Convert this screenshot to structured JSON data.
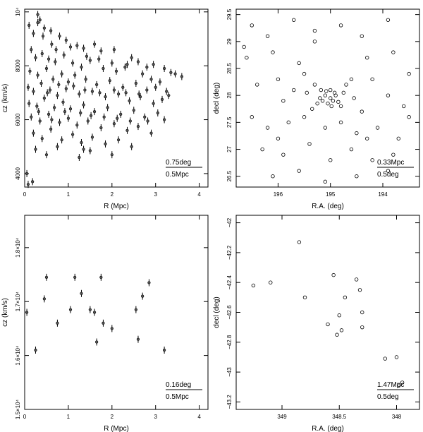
{
  "chart_data": [
    {
      "type": "scatter",
      "panel": "top-left",
      "xlabel": "R (Mpc)",
      "ylabel": "cz (km/s)",
      "xlim": [
        0,
        4.2
      ],
      "ylim": [
        3500,
        10100
      ],
      "x_ticks": [
        0,
        1,
        2,
        3,
        4
      ],
      "y_ticks": [
        {
          "v": 4000,
          "label": "4000"
        },
        {
          "v": 6000,
          "label": "6000"
        },
        {
          "v": 8000,
          "label": "8000"
        },
        {
          "v": 10000,
          "label": "10⁴"
        }
      ],
      "scale_bar": {
        "top": "0.75deg",
        "bottom": "0.5Mpc"
      },
      "marker": "errorbar",
      "points": [
        [
          0.05,
          4000
        ],
        [
          0.08,
          3600
        ],
        [
          0.18,
          3700
        ],
        [
          0.1,
          9500
        ],
        [
          0.2,
          9200
        ],
        [
          0.3,
          9900
        ],
        [
          0.35,
          9700
        ],
        [
          0.45,
          9400
        ],
        [
          0.6,
          9300
        ],
        [
          0.8,
          9100
        ],
        [
          0.95,
          8950
        ],
        [
          1.2,
          8750
        ],
        [
          1.35,
          8650
        ],
        [
          1.6,
          8800
        ],
        [
          1.75,
          8550
        ],
        [
          2.05,
          8600
        ],
        [
          2.45,
          8300
        ],
        [
          2.6,
          8150
        ],
        [
          2.95,
          8050
        ],
        [
          3.2,
          7900
        ],
        [
          3.45,
          7700
        ],
        [
          3.6,
          7600
        ],
        [
          0.15,
          8600
        ],
        [
          0.25,
          8300
        ],
        [
          0.4,
          8450
        ],
        [
          0.55,
          8250
        ],
        [
          0.7,
          8150
        ],
        [
          0.9,
          8400
        ],
        [
          1.1,
          8100
        ],
        [
          1.3,
          7950
        ],
        [
          1.5,
          8200
        ],
        [
          1.8,
          7900
        ],
        [
          2.1,
          7800
        ],
        [
          2.3,
          7950
        ],
        [
          2.7,
          7700
        ],
        [
          2.9,
          7500
        ],
        [
          3.1,
          7400
        ],
        [
          0.12,
          7800
        ],
        [
          0.3,
          7650
        ],
        [
          0.5,
          7900
        ],
        [
          0.65,
          7500
        ],
        [
          0.85,
          7700
        ],
        [
          1.0,
          7400
        ],
        [
          1.15,
          7650
        ],
        [
          1.4,
          7500
        ],
        [
          1.65,
          7300
        ],
        [
          1.95,
          7450
        ],
        [
          2.25,
          7200
        ],
        [
          2.55,
          7350
        ],
        [
          2.8,
          7100
        ],
        [
          3.0,
          7200
        ],
        [
          3.3,
          6900
        ],
        [
          0.08,
          7200
        ],
        [
          0.2,
          7050
        ],
        [
          0.38,
          7350
        ],
        [
          0.58,
          7100
        ],
        [
          0.75,
          6900
        ],
        [
          0.95,
          7150
        ],
        [
          1.25,
          6950
        ],
        [
          1.55,
          7050
        ],
        [
          1.85,
          6850
        ],
        [
          2.15,
          6950
        ],
        [
          2.4,
          6700
        ],
        [
          2.65,
          6850
        ],
        [
          2.95,
          6600
        ],
        [
          3.15,
          6750
        ],
        [
          0.1,
          6600
        ],
        [
          0.28,
          6500
        ],
        [
          0.45,
          6800
        ],
        [
          0.68,
          6450
        ],
        [
          0.88,
          6650
        ],
        [
          1.05,
          6400
        ],
        [
          1.35,
          6550
        ],
        [
          1.6,
          6300
        ],
        [
          1.9,
          6450
        ],
        [
          2.2,
          6200
        ],
        [
          2.5,
          6350
        ],
        [
          2.75,
          6100
        ],
        [
          3.05,
          6250
        ],
        [
          0.15,
          6100
        ],
        [
          0.35,
          5950
        ],
        [
          0.55,
          6200
        ],
        [
          0.8,
          5900
        ],
        [
          1.0,
          6050
        ],
        [
          1.2,
          5800
        ],
        [
          1.45,
          5950
        ],
        [
          1.75,
          5700
        ],
        [
          2.05,
          5850
        ],
        [
          2.35,
          5600
        ],
        [
          2.6,
          5750
        ],
        [
          2.9,
          5500
        ],
        [
          0.2,
          5500
        ],
        [
          0.4,
          5300
        ],
        [
          0.6,
          5650
        ],
        [
          0.85,
          5250
        ],
        [
          1.1,
          5450
        ],
        [
          1.3,
          5150
        ],
        [
          1.55,
          5350
        ],
        [
          1.85,
          5100
        ],
        [
          2.15,
          5250
        ],
        [
          2.45,
          5000
        ],
        [
          0.25,
          4900
        ],
        [
          0.5,
          4700
        ],
        [
          0.75,
          5000
        ],
        [
          1.25,
          4600
        ],
        [
          1.5,
          4850
        ],
        [
          2.0,
          4700
        ],
        [
          1.35,
          4900
        ],
        [
          0.3,
          9600
        ],
        [
          0.42,
          9100
        ],
        [
          0.62,
          8800
        ],
        [
          0.72,
          8600
        ],
        [
          1.05,
          8700
        ],
        [
          1.42,
          8350
        ],
        [
          1.7,
          8250
        ],
        [
          2.0,
          8100
        ],
        [
          2.35,
          8050
        ],
        [
          2.8,
          7950
        ],
        [
          3.35,
          7750
        ],
        [
          0.52,
          7000
        ],
        [
          0.78,
          7300
        ],
        [
          1.12,
          7250
        ],
        [
          1.38,
          7100
        ],
        [
          1.72,
          7000
        ],
        [
          2.05,
          7100
        ],
        [
          2.32,
          7000
        ],
        [
          2.62,
          6950
        ],
        [
          3.25,
          7050
        ],
        [
          0.32,
          6300
        ],
        [
          0.62,
          6000
        ],
        [
          0.92,
          6300
        ],
        [
          1.28,
          6250
        ],
        [
          1.52,
          6150
        ],
        [
          1.82,
          6100
        ],
        [
          2.12,
          6050
        ],
        [
          2.42,
          5950
        ],
        [
          2.82,
          5950
        ],
        [
          3.2,
          6000
        ]
      ]
    },
    {
      "type": "scatter",
      "panel": "top-right",
      "xlabel": "R.A. (deg)",
      "ylabel": "decl (deg)",
      "xlim": [
        196.8,
        193.3
      ],
      "ylim": [
        26.3,
        29.6
      ],
      "x_ticks": [
        {
          "v": 196,
          "label": "196"
        },
        {
          "v": 195,
          "label": "195"
        },
        {
          "v": 194,
          "label": "194"
        }
      ],
      "y_ticks": [
        {
          "v": 26.5,
          "label": "26.5"
        },
        {
          "v": 27,
          "label": "27"
        },
        {
          "v": 27.5,
          "label": "27.5"
        },
        {
          "v": 28,
          "label": "28"
        },
        {
          "v": 28.5,
          "label": "28.5"
        },
        {
          "v": 29,
          "label": "29"
        },
        {
          "v": 29.5,
          "label": "29.5"
        }
      ],
      "scale_bar": {
        "top": "0.33Mpc",
        "bottom": "0.5deg"
      },
      "marker": "circle",
      "points": [
        [
          196.5,
          29.3
        ],
        [
          196.2,
          29.1
        ],
        [
          195.7,
          29.4
        ],
        [
          195.3,
          29.2
        ],
        [
          194.8,
          29.3
        ],
        [
          194.4,
          29.1
        ],
        [
          193.9,
          29.4
        ],
        [
          196.6,
          28.7
        ],
        [
          196.1,
          28.8
        ],
        [
          195.6,
          28.6
        ],
        [
          194.3,
          28.7
        ],
        [
          193.8,
          28.8
        ],
        [
          193.5,
          28.4
        ],
        [
          196.4,
          28.2
        ],
        [
          196.0,
          28.3
        ],
        [
          195.9,
          27.9
        ],
        [
          195.7,
          28.1
        ],
        [
          195.45,
          28.05
        ],
        [
          195.3,
          28.2
        ],
        [
          195.2,
          27.95
        ],
        [
          195.1,
          28.0
        ],
        [
          195.05,
          27.85
        ],
        [
          195.0,
          28.1
        ],
        [
          194.95,
          27.9
        ],
        [
          194.9,
          28.0
        ],
        [
          194.8,
          27.8
        ],
        [
          194.7,
          28.2
        ],
        [
          194.55,
          27.95
        ],
        [
          194.4,
          27.7
        ],
        [
          194.2,
          28.3
        ],
        [
          193.9,
          28.0
        ],
        [
          193.6,
          27.8
        ],
        [
          196.5,
          27.6
        ],
        [
          196.2,
          27.4
        ],
        [
          195.8,
          27.5
        ],
        [
          195.5,
          27.6
        ],
        [
          195.1,
          27.4
        ],
        [
          194.8,
          27.5
        ],
        [
          194.5,
          27.3
        ],
        [
          194.1,
          27.4
        ],
        [
          193.7,
          27.2
        ],
        [
          196.3,
          27.0
        ],
        [
          195.9,
          26.9
        ],
        [
          195.4,
          27.1
        ],
        [
          195.0,
          26.8
        ],
        [
          194.6,
          27.0
        ],
        [
          194.2,
          26.8
        ],
        [
          193.8,
          26.9
        ],
        [
          196.1,
          26.5
        ],
        [
          195.6,
          26.6
        ],
        [
          195.1,
          26.4
        ],
        [
          194.5,
          26.5
        ],
        [
          193.9,
          26.6
        ],
        [
          195.15,
          27.9
        ],
        [
          195.0,
          27.95
        ],
        [
          194.92,
          28.05
        ],
        [
          195.08,
          28.08
        ],
        [
          195.18,
          28.1
        ],
        [
          194.85,
          27.88
        ],
        [
          194.98,
          27.8
        ],
        [
          195.25,
          27.85
        ],
        [
          194.75,
          28.05
        ],
        [
          195.35,
          27.75
        ],
        [
          194.6,
          28.3
        ],
        [
          195.5,
          28.4
        ],
        [
          194.3,
          27.2
        ],
        [
          196.65,
          28.9
        ],
        [
          193.5,
          27.6
        ],
        [
          196.0,
          27.2
        ],
        [
          195.3,
          29.0
        ]
      ]
    },
    {
      "type": "scatter",
      "panel": "bottom-left",
      "xlabel": "R (Mpc)",
      "ylabel": "cz (km/s)",
      "xlim": [
        0,
        4.2
      ],
      "ylim": [
        15000,
        18600
      ],
      "x_ticks": [
        0,
        1,
        2,
        3,
        4
      ],
      "y_ticks": [
        {
          "v": 15000,
          "label": "1.5×10⁴"
        },
        {
          "v": 16000,
          "label": "1.6×10⁴"
        },
        {
          "v": 17000,
          "label": "1.7×10⁴"
        },
        {
          "v": 18000,
          "label": "1.8×10⁴"
        }
      ],
      "scale_bar": {
        "top": "0.16deg",
        "bottom": "0.5Mpc"
      },
      "marker": "errorbar",
      "points": [
        [
          0.05,
          16800
        ],
        [
          0.25,
          16100
        ],
        [
          0.45,
          17050
        ],
        [
          0.5,
          17450
        ],
        [
          0.75,
          16600
        ],
        [
          1.05,
          16850
        ],
        [
          1.15,
          17450
        ],
        [
          1.3,
          17150
        ],
        [
          1.5,
          16850
        ],
        [
          1.6,
          16800
        ],
        [
          1.65,
          16250
        ],
        [
          1.75,
          17450
        ],
        [
          1.8,
          16600
        ],
        [
          2.0,
          16500
        ],
        [
          2.55,
          16850
        ],
        [
          2.6,
          16300
        ],
        [
          2.7,
          17100
        ],
        [
          2.85,
          17350
        ],
        [
          3.2,
          16100
        ]
      ]
    },
    {
      "type": "scatter",
      "panel": "bottom-right",
      "xlabel": "R.A. (deg)",
      "ylabel": "decl (deg)",
      "xlim": [
        349.4,
        347.8
      ],
      "ylim": [
        -43.25,
        -41.95
      ],
      "x_ticks": [
        {
          "v": 349,
          "label": "349"
        },
        {
          "v": 348.5,
          "label": "348.5"
        },
        {
          "v": 348,
          "label": "348"
        }
      ],
      "y_ticks": [
        {
          "v": -43.2,
          "label": "−43.2"
        },
        {
          "v": -43.0,
          "label": "−43"
        },
        {
          "v": -42.8,
          "label": "−42.8"
        },
        {
          "v": -42.6,
          "label": "−42.6"
        },
        {
          "v": -42.4,
          "label": "−42.4"
        },
        {
          "v": -42.2,
          "label": "−42.2"
        },
        {
          "v": -42.0,
          "label": "−42"
        }
      ],
      "scale_bar": {
        "top": "1.47Mpc",
        "bottom": "0.5deg"
      },
      "marker": "circle",
      "points": [
        [
          349.25,
          -42.42
        ],
        [
          349.1,
          -42.4
        ],
        [
          348.8,
          -42.5
        ],
        [
          348.85,
          -42.13
        ],
        [
          348.55,
          -42.35
        ],
        [
          348.45,
          -42.5
        ],
        [
          348.35,
          -42.38
        ],
        [
          348.32,
          -42.45
        ],
        [
          348.5,
          -42.62
        ],
        [
          348.3,
          -42.6
        ],
        [
          348.6,
          -42.68
        ],
        [
          348.52,
          -42.75
        ],
        [
          348.48,
          -42.72
        ],
        [
          348.3,
          -42.7
        ],
        [
          348.0,
          -42.9
        ],
        [
          348.1,
          -42.91
        ],
        [
          347.95,
          -43.07
        ],
        [
          347.98,
          -43.09
        ]
      ]
    }
  ]
}
